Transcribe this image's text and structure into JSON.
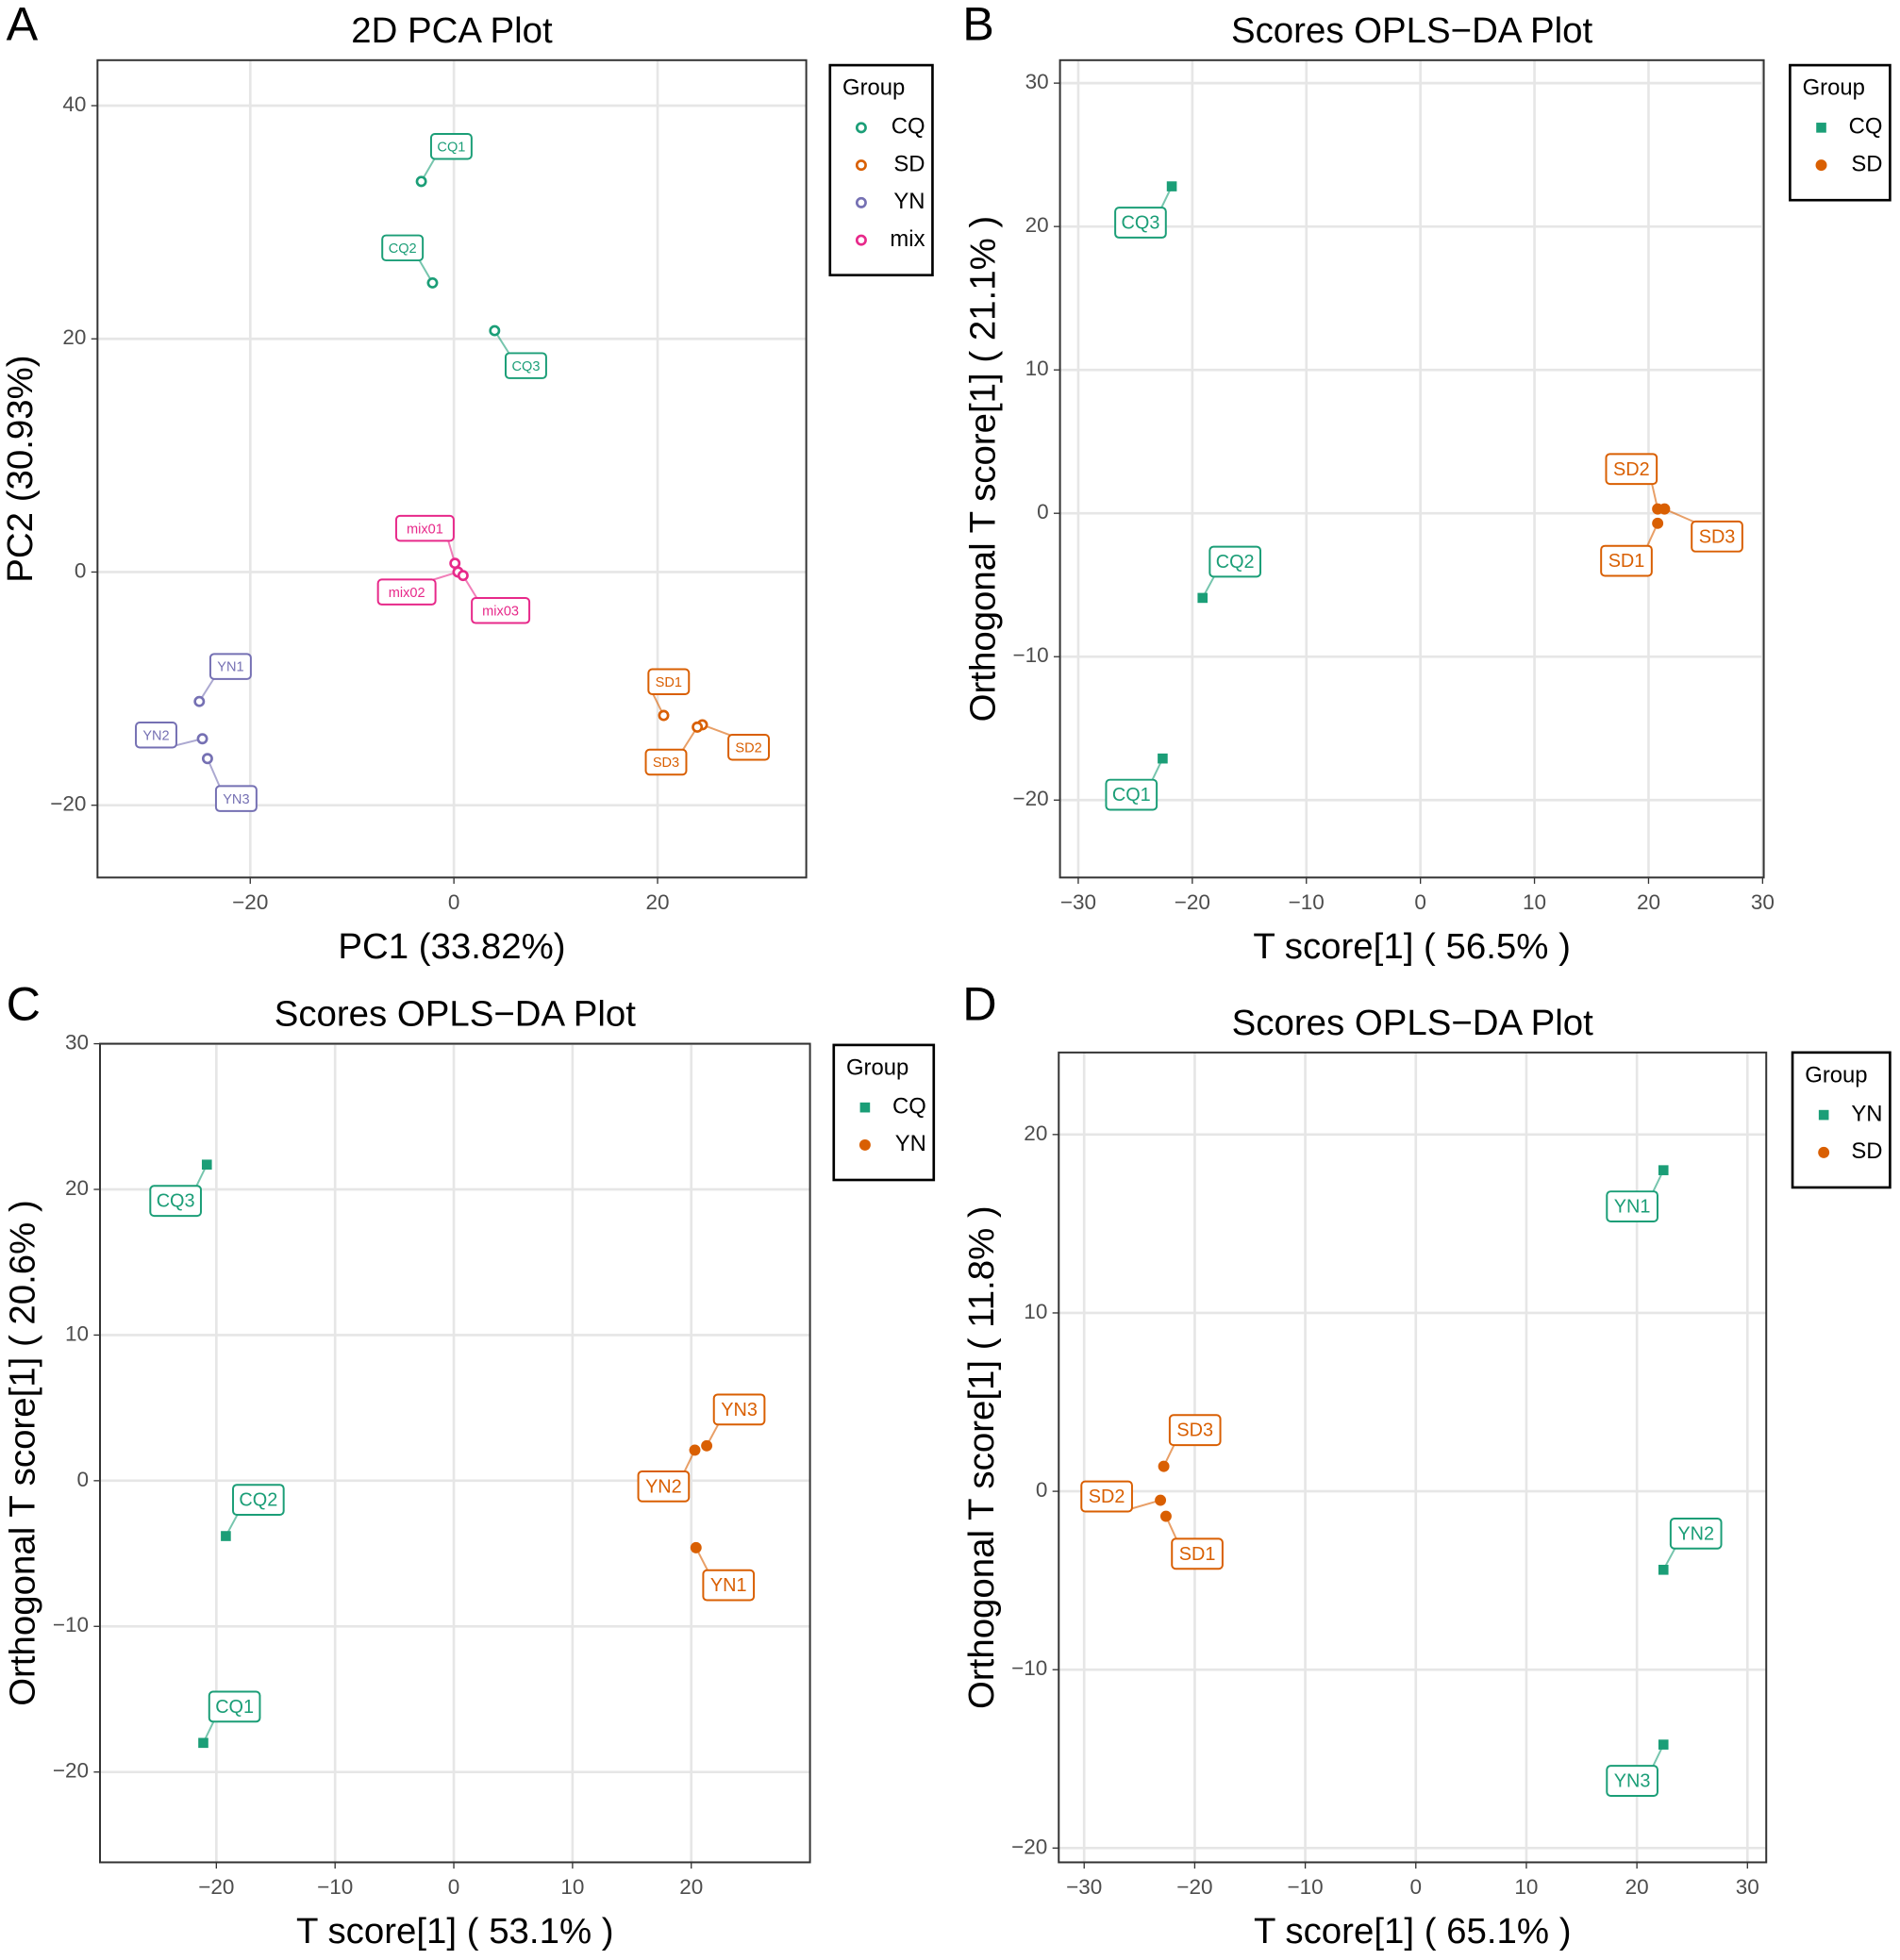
{
  "chart_data": [
    {
      "type": "scatter",
      "panel": "A",
      "title": "2D PCA Plot",
      "x_label": "PC1 (33.82%)",
      "y_label": "PC2 (30.93%)",
      "legend_title": "Group",
      "xlim": [
        -35,
        34.6
      ],
      "ylim": [
        -26.2,
        43.9
      ],
      "xticks": [
        {
          "value": -20,
          "label": "−20"
        },
        0,
        20
      ],
      "yticks": [
        {
          "value": -20,
          "label": "−20"
        },
        0,
        20,
        40
      ],
      "grid": true,
      "series": [
        {
          "name": "CQ",
          "color": "#1b9e77",
          "shape": "open-circle",
          "labels": [
            "CQ1",
            "CQ2",
            "CQ3"
          ],
          "x": [
            -3.2,
            -2.1,
            4.0
          ],
          "y": [
            33.5,
            24.8,
            20.7
          ]
        },
        {
          "name": "SD",
          "color": "#d95f02",
          "shape": "open-circle",
          "labels": [
            "SD1",
            "SD2",
            "SD3"
          ],
          "x": [
            20.6,
            24.4,
            23.9
          ],
          "y": [
            -12.3,
            -13.1,
            -13.3
          ]
        },
        {
          "name": "YN",
          "color": "#7570b3",
          "shape": "open-circle",
          "labels": [
            "YN1",
            "YN2",
            "YN3"
          ],
          "x": [
            -25.0,
            -24.7,
            -24.2
          ],
          "y": [
            -11.1,
            -14.3,
            -16.0
          ]
        },
        {
          "name": "mix",
          "color": "#e7298a",
          "shape": "open-circle",
          "labels": [
            "mix01",
            "mix02",
            "mix03"
          ],
          "x": [
            0.1,
            0.4,
            0.9
          ],
          "y": [
            0.75,
            0,
            -0.3
          ]
        }
      ]
    },
    {
      "type": "scatter",
      "panel": "B",
      "title": "Scores OPLS−DA Plot",
      "x_label": "T score[1] ( 56.5% )",
      "y_label": "Orthogonal T score[1] ( 21.1% )",
      "legend_title": "Group",
      "xlim": [
        -31.6,
        30.1
      ],
      "ylim": [
        -25.4,
        31.6
      ],
      "xticks": [
        {
          "value": -30,
          "label": "−30"
        },
        {
          "value": -20,
          "label": "−20"
        },
        {
          "value": -10,
          "label": "−10"
        },
        0,
        10,
        20,
        30
      ],
      "yticks": [
        {
          "value": -20,
          "label": "−20"
        },
        {
          "value": -10,
          "label": "−10"
        },
        0,
        10,
        20,
        30
      ],
      "grid": true,
      "series": [
        {
          "name": "CQ",
          "color": "#1b9e77",
          "shape": "square",
          "labels": [
            "CQ3",
            "CQ2",
            "CQ1"
          ],
          "x": [
            -21.8,
            -19.1,
            -22.6
          ],
          "y": [
            22.8,
            -5.9,
            -17.1
          ]
        },
        {
          "name": "SD",
          "color": "#d95f02",
          "shape": "circle",
          "labels": [
            "SD1",
            "SD2",
            "SD3"
          ],
          "x": [
            20.8,
            20.8,
            21.4
          ],
          "y": [
            -0.7,
            0.3,
            0.3
          ]
        }
      ]
    },
    {
      "type": "scatter",
      "panel": "C",
      "title": "Scores OPLS−DA Plot",
      "x_label": "T score[1] ( 53.1% )",
      "y_label": "Orthogonal T score[1] ( 20.6% )",
      "legend_title": "Group",
      "xlim": [
        -29.8,
        30.0
      ],
      "ylim": [
        -26.2,
        30
      ],
      "xticks": [
        {
          "value": -20,
          "label": "−20"
        },
        {
          "value": -10,
          "label": "−10"
        },
        0,
        10,
        20
      ],
      "yticks": [
        {
          "value": -20,
          "label": "−20"
        },
        {
          "value": -10,
          "label": "−10"
        },
        0,
        10,
        20,
        30
      ],
      "grid": true,
      "series": [
        {
          "name": "CQ",
          "color": "#1b9e77",
          "shape": "square",
          "labels": [
            "CQ3",
            "CQ2",
            "CQ1"
          ],
          "x": [
            -20.8,
            -19.2,
            -21.1
          ],
          "y": [
            21.7,
            -3.8,
            -18.0
          ]
        },
        {
          "name": "YN",
          "color": "#d95f02",
          "shape": "circle",
          "labels": [
            "YN1",
            "YN2",
            "YN3"
          ],
          "x": [
            20.4,
            20.3,
            21.3
          ],
          "y": [
            -4.6,
            2.1,
            2.4
          ]
        }
      ]
    },
    {
      "type": "scatter",
      "panel": "D",
      "title": "Scores OPLS−DA Plot",
      "x_label": "T score[1] ( 65.1% )",
      "y_label": "Orthogonal T score[1] ( 11.8% )",
      "legend_title": "Group",
      "xlim": [
        -32.3,
        31.7
      ],
      "ylim": [
        -20.8,
        24.6
      ],
      "xticks": [
        {
          "value": -30,
          "label": "−30"
        },
        {
          "value": -20,
          "label": "−20"
        },
        {
          "value": -10,
          "label": "−10"
        },
        0,
        10,
        20,
        30
      ],
      "yticks": [
        {
          "value": -20,
          "label": "−20"
        },
        {
          "value": -10,
          "label": "−10"
        },
        0,
        10,
        20
      ],
      "grid": true,
      "series": [
        {
          "name": "YN",
          "color": "#1b9e77",
          "shape": "square",
          "labels": [
            "YN1",
            "YN2",
            "YN3"
          ],
          "x": [
            22.4,
            22.4,
            22.4
          ],
          "y": [
            18.0,
            -4.4,
            -14.2
          ]
        },
        {
          "name": "SD",
          "color": "#d95f02",
          "shape": "circle",
          "labels": [
            "SD1",
            "SD2",
            "SD3"
          ],
          "x": [
            -22.6,
            -23.1,
            -22.8
          ],
          "y": [
            -1.4,
            -0.5,
            1.4
          ]
        }
      ]
    }
  ]
}
